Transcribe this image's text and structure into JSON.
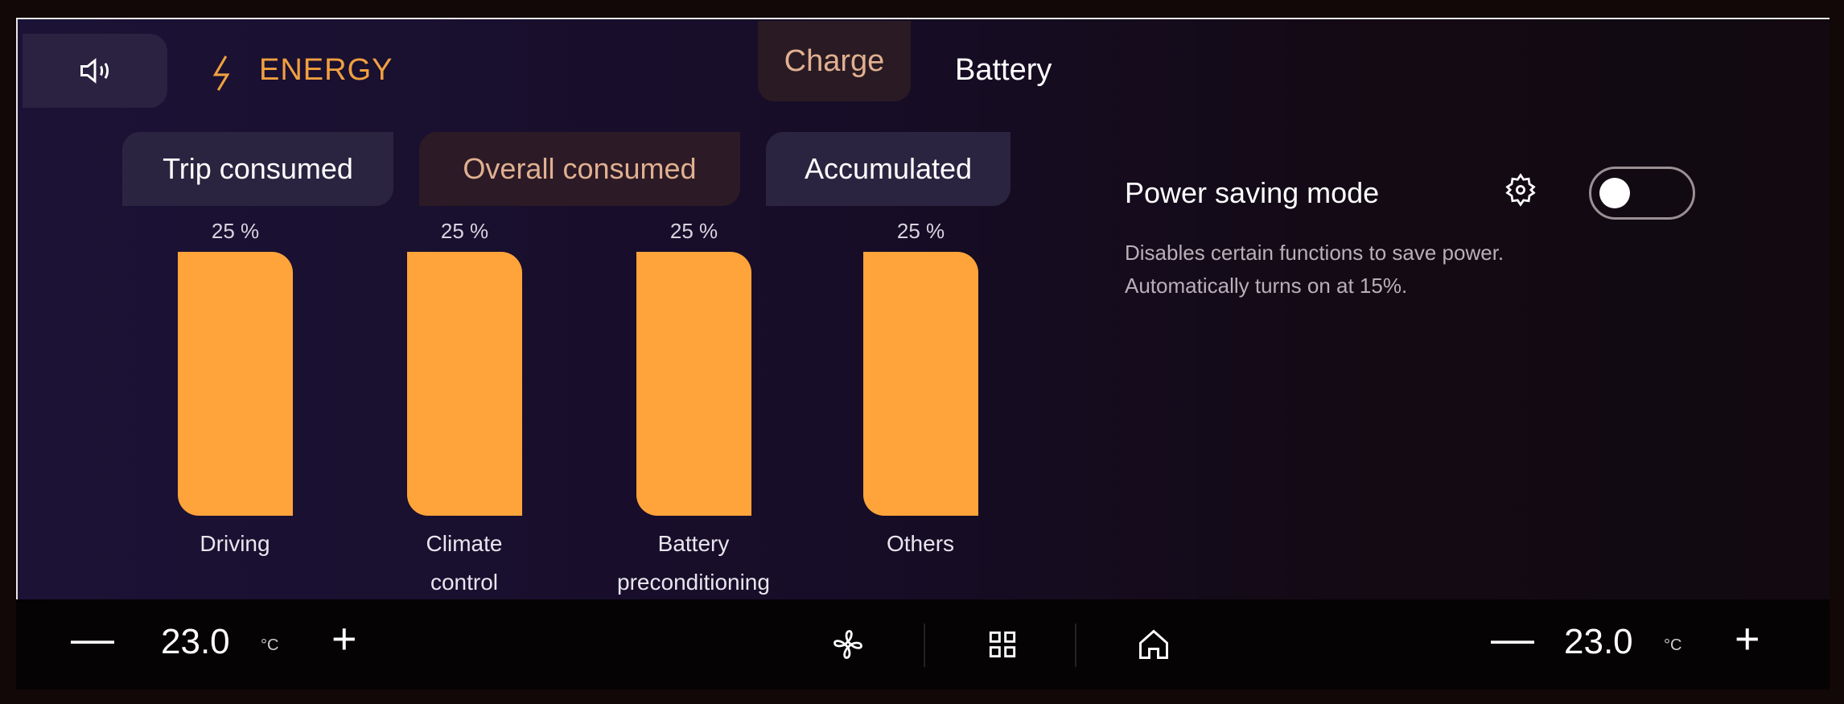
{
  "header": {
    "speaker_icon": "speaker-icon",
    "energy_icon": "lightning-icon",
    "title": "ENERGY",
    "tabs": [
      {
        "label": "Charge",
        "active": true
      },
      {
        "label": "Battery",
        "active": false
      }
    ]
  },
  "subtabs": [
    {
      "label": "Trip consumed",
      "active": false
    },
    {
      "label": "Overall consumed",
      "active": true
    },
    {
      "label": "Accumulated",
      "active": false
    }
  ],
  "chart_data": {
    "type": "bar",
    "categories": [
      "Driving",
      "Climate control",
      "Battery preconditioning",
      "Others"
    ],
    "category_lines": [
      [
        "Driving"
      ],
      [
        "Climate",
        "control"
      ],
      [
        "Battery",
        "preconditioning"
      ],
      [
        "Others"
      ]
    ],
    "values": [
      25,
      25,
      25,
      25
    ],
    "value_labels": [
      "25 %",
      "25 %",
      "25 %",
      "25 %"
    ],
    "color": "#ffa43a"
  },
  "power_saving": {
    "label": "Power saving mode",
    "enabled": false,
    "desc_line1": "Disables certain functions to save power.",
    "desc_line2": "Automatically turns on at 15%."
  },
  "bottom_bar": {
    "left_temp": "23.0",
    "right_temp": "23.0",
    "unit": "°C",
    "minus": "—",
    "plus": "+",
    "icons": [
      "fan-icon",
      "apps-grid-icon",
      "home-icon"
    ]
  },
  "colors": {
    "accent": "#f0a040",
    "bar": "#ffa43a"
  }
}
